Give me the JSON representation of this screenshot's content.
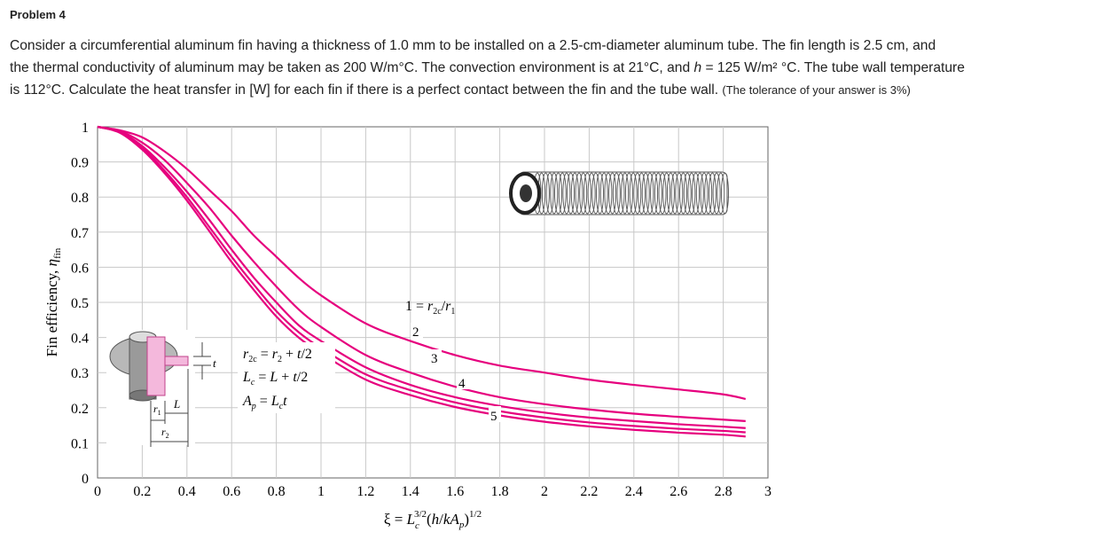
{
  "problem": {
    "heading": "Problem 4",
    "line1": "Consider a circumferential aluminum fin having a thickness of 1.0 mm to be installed on a 2.5-cm-diameter aluminum tube. The fin length is 2.5 cm, and",
    "line2_a": "the thermal conductivity of aluminum may be taken as 200 W/m°C. The convection environment is at 21°C, and ",
    "line2_h": "h",
    "line2_b": " = 125 W/m² °C. The tube wall temperature",
    "line3": "is 112°C. Calculate the heat transfer in [W] for each fin if there is a perfect contact between the fin and the tube wall. ",
    "tolerance": "(The tolerance of your answer is 3%)"
  },
  "chart_data": {
    "type": "line",
    "xlabel": "ξ = L_c^{3/2}(h/kA_p)^{1/2}",
    "ylabel": "Fin efficiency, η_fin",
    "xlim": [
      0,
      3
    ],
    "ylim": [
      0,
      1
    ],
    "x_ticks": [
      "0",
      "0.2",
      "0.4",
      "0.6",
      "0.8",
      "1",
      "1.2",
      "1.4",
      "1.6",
      "1.8",
      "2",
      "2.2",
      "2.4",
      "2.6",
      "2.8",
      "3"
    ],
    "y_ticks": [
      "0",
      "0.1",
      "0.2",
      "0.3",
      "0.4",
      "0.5",
      "0.6",
      "0.7",
      "0.8",
      "0.9",
      "1"
    ],
    "grid": true,
    "color": "#e6007e",
    "x": [
      0,
      0.1,
      0.2,
      0.3,
      0.4,
      0.5,
      0.6,
      0.7,
      0.8,
      0.9,
      1.0,
      1.2,
      1.4,
      1.6,
      1.8,
      2.0,
      2.2,
      2.4,
      2.6,
      2.8,
      2.9
    ],
    "series": [
      {
        "name": "1",
        "values": [
          1.0,
          0.99,
          0.97,
          0.93,
          0.88,
          0.82,
          0.76,
          0.69,
          0.63,
          0.57,
          0.52,
          0.44,
          0.39,
          0.35,
          0.32,
          0.3,
          0.28,
          0.265,
          0.252,
          0.238,
          0.225
        ]
      },
      {
        "name": "2",
        "values": [
          1.0,
          0.988,
          0.955,
          0.905,
          0.84,
          0.77,
          0.69,
          0.615,
          0.545,
          0.48,
          0.43,
          0.35,
          0.3,
          0.26,
          0.23,
          0.21,
          0.195,
          0.183,
          0.174,
          0.166,
          0.162
        ]
      },
      {
        "name": "3",
        "values": [
          1.0,
          0.985,
          0.945,
          0.885,
          0.815,
          0.735,
          0.65,
          0.57,
          0.5,
          0.435,
          0.39,
          0.315,
          0.265,
          0.23,
          0.205,
          0.186,
          0.172,
          0.162,
          0.153,
          0.146,
          0.142
        ]
      },
      {
        "name": "4",
        "values": [
          1.0,
          0.984,
          0.94,
          0.875,
          0.8,
          0.715,
          0.63,
          0.55,
          0.475,
          0.415,
          0.37,
          0.295,
          0.25,
          0.215,
          0.19,
          0.172,
          0.158,
          0.148,
          0.14,
          0.134,
          0.13
        ]
      },
      {
        "name": "5",
        "values": [
          1.0,
          0.983,
          0.935,
          0.868,
          0.79,
          0.703,
          0.615,
          0.535,
          0.46,
          0.4,
          0.355,
          0.28,
          0.236,
          0.202,
          0.178,
          0.16,
          0.147,
          0.137,
          0.129,
          0.123,
          0.118
        ]
      }
    ],
    "annotations": {
      "curve_labels": [
        "1 = r_{2c}/r_1",
        "2",
        "3",
        "4",
        "5"
      ],
      "formulas": [
        "r_{2c} = r_2 + t/2",
        "L_c = L + t/2",
        "A_p = L_c t"
      ],
      "dimension_labels": [
        "t",
        "r_1",
        "L",
        "r_2"
      ]
    }
  }
}
